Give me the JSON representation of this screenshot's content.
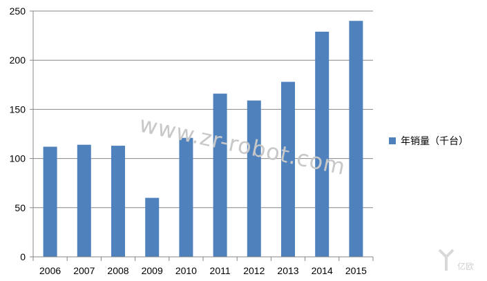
{
  "chart_data": {
    "type": "bar",
    "categories": [
      "2006",
      "2007",
      "2008",
      "2009",
      "2010",
      "2011",
      "2012",
      "2013",
      "2014",
      "2015"
    ],
    "series": [
      {
        "name": "年销量（千台）",
        "values": [
          112,
          114,
          113,
          60,
          121,
          166,
          159,
          178,
          229,
          240
        ]
      }
    ],
    "title": "",
    "xlabel": "",
    "ylabel": "",
    "ylim": [
      0,
      250
    ],
    "yticks": [
      "0",
      "50",
      "100",
      "150",
      "200",
      "250"
    ],
    "grid": true,
    "legend_position": "right",
    "bar_color": "#4f81bd"
  },
  "watermark": "www.zr-robot.com",
  "corner_logo": "亿欧"
}
